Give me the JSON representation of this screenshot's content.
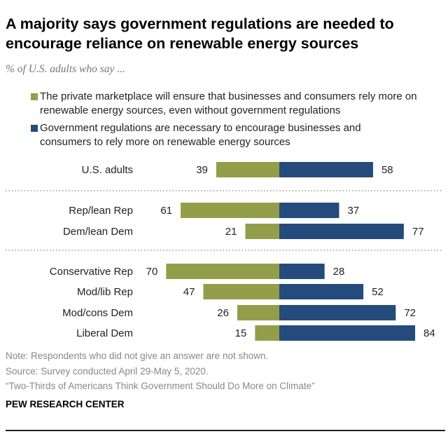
{
  "title": "A majority says government regulations are needed to encourage reliance on renewable energy sources",
  "subtitle": "% of U.S. adults who say ...",
  "chart_data": {
    "type": "bar",
    "orientation": "horizontal-diverging",
    "categories": [
      "U.S. adults",
      "Rep/lean Rep",
      "Dem/lean Dem",
      "Conservative Rep",
      "Mod/lib Rep",
      "Mod/cons Dem",
      "Liberal Dem"
    ],
    "groups": [
      [
        0
      ],
      [
        1,
        2
      ],
      [
        3,
        4,
        5,
        6
      ]
    ],
    "series": [
      {
        "name": "The private marketplace will ensure that businesses and consumers rely more on renewable energy sources, even without government regulations",
        "color": "#939e4a",
        "values": [
          39,
          61,
          21,
          70,
          47,
          26,
          15
        ]
      },
      {
        "name": "Government regulations are necessary to encourage businesses and consumers to rely more on renewable energy sources",
        "color": "#244b7c",
        "values": [
          58,
          37,
          77,
          28,
          52,
          72,
          84
        ]
      }
    ],
    "grid": false,
    "legend": "top"
  },
  "footer": {
    "note": "Note: Respondents who did not give an answer are not shown.",
    "source": "Source: Survey conducted April 29-May 5, 2020.",
    "report": "“Two-Thirds of Americans Think Government Should Do More on Climate”",
    "org": "PEW RESEARCH CENTER"
  }
}
